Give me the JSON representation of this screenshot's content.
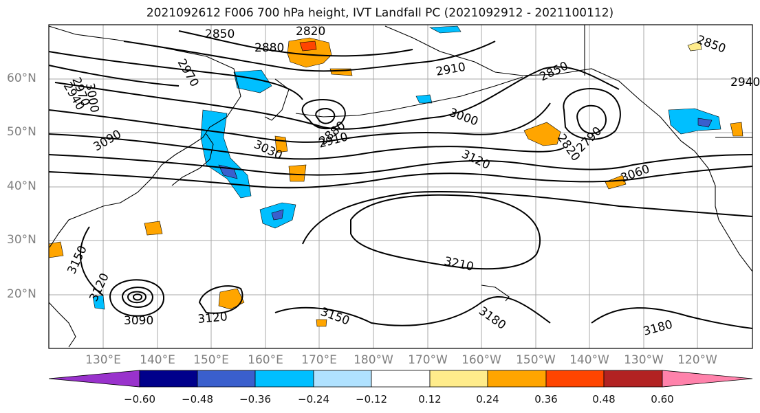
{
  "title": "2021092612 F006 700 hPa height, IVT Landfall PC (2021092912 - 2021100112)",
  "lat_labels": [
    "60°N",
    "50°N",
    "40°N",
    "30°N",
    "20°N"
  ],
  "lon_labels": [
    "130°E",
    "140°E",
    "150°E",
    "160°E",
    "170°E",
    "180°W",
    "170°W",
    "160°W",
    "150°W",
    "140°W",
    "130°W",
    "120°W"
  ],
  "contour_labels": [
    "2850",
    "2820",
    "2880",
    "2970",
    "2940",
    "2970",
    "3000",
    "3090",
    "2910",
    "2880",
    "2910",
    "3030",
    "3000",
    "3120",
    "2850",
    "2820",
    "2790",
    "3060",
    "2850",
    "2940",
    "3210",
    "3150",
    "3120",
    "3090",
    "3120",
    "3150",
    "3180",
    "3180"
  ],
  "colorbar": {
    "ticks": [
      "−0.60",
      "−0.48",
      "−0.36",
      "−0.24",
      "−0.12",
      "0.12",
      "0.24",
      "0.36",
      "0.48",
      "0.60"
    ],
    "colors": [
      "#9932cc",
      "#00008b",
      "#3a5fcd",
      "#00bfff",
      "#b0e2ff",
      "#ffffff",
      "#ffec8b",
      "#ffa500",
      "#ff4500",
      "#b22222",
      "#ff82ab"
    ]
  },
  "fill_colors": {
    "neg_weak": "#00bfff",
    "neg_strong": "#3a5fcd",
    "pos_weak": "#ffa500",
    "pos_strong": "#ff4500",
    "pos_light": "#ffec8b"
  }
}
